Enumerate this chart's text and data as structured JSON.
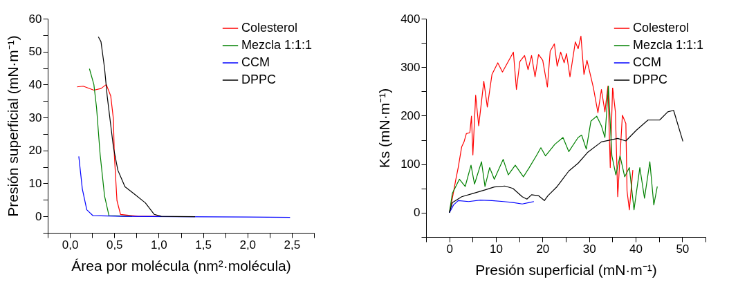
{
  "chart_data": [
    {
      "type": "line",
      "xlabel": "Área por molécula (nm²·molécula)",
      "ylabel": "Presión superficial (mN·m⁻¹)",
      "xlim": [
        -0.25,
        2.75
      ],
      "ylim": [
        -5,
        60
      ],
      "xticks": [
        {
          "value": -0.25,
          "label": null
        },
        {
          "value": 0,
          "label": "0,0"
        },
        {
          "value": 0.25,
          "label": null
        },
        {
          "value": 0.5,
          "label": "0,5"
        },
        {
          "value": 0.75,
          "label": null
        },
        {
          "value": 1,
          "label": "1,0"
        },
        {
          "value": 1.25,
          "label": null
        },
        {
          "value": 1.5,
          "label": "1,5"
        },
        {
          "value": 1.75,
          "label": null
        },
        {
          "value": 2,
          "label": "2,0"
        },
        {
          "value": 2.25,
          "label": null
        },
        {
          "value": 2.5,
          "label": "2,5"
        },
        {
          "value": 2.75,
          "label": null
        }
      ],
      "yticks": [
        {
          "value": -5,
          "label": null
        },
        0,
        {
          "value": 5,
          "label": null
        },
        10,
        {
          "value": 15,
          "label": null
        },
        20,
        {
          "value": 25,
          "label": null
        },
        30,
        {
          "value": 35,
          "label": null
        },
        40,
        {
          "value": 45,
          "label": null
        },
        50,
        {
          "value": 55,
          "label": null
        },
        60
      ],
      "grid": false,
      "legend": "top right",
      "marker": "none",
      "line_style": "solid",
      "series": [
        {
          "name": "Colesterol",
          "color": "#ff0000",
          "x": [
            0.08,
            0.15,
            0.27,
            0.35,
            0.41,
            0.46,
            0.49,
            0.5,
            0.53,
            0.57,
            0.77,
            1.0
          ],
          "values": [
            39.3,
            39.5,
            38.3,
            38.8,
            40,
            36.5,
            29.5,
            18.9,
            4.8,
            0.6,
            0,
            0
          ]
        },
        {
          "name": "Mezcla 1:1:1",
          "color": "#008000",
          "x": [
            0.22,
            0.27,
            0.3,
            0.34,
            0.39,
            0.44,
            0.7
          ],
          "values": [
            44.8,
            40,
            33,
            18.9,
            6.2,
            0.2,
            0
          ]
        },
        {
          "name": "CCM",
          "color": "#0000ff",
          "x": [
            0.1,
            0.14,
            0.19,
            0.26,
            0.6,
            2.0,
            2.48
          ],
          "values": [
            18.2,
            8.3,
            2,
            0.2,
            0,
            -0.2,
            -0.3
          ]
        },
        {
          "name": "DPPC",
          "color": "#000000",
          "x": [
            0.32,
            0.35,
            0.39,
            0.42,
            0.49,
            0.54,
            0.62,
            0.72,
            0.85,
            0.95,
            1.03,
            1.41
          ],
          "values": [
            54.5,
            53,
            45,
            36.5,
            21,
            14,
            9,
            6.9,
            4.1,
            0.6,
            0,
            -0.1
          ]
        }
      ]
    },
    {
      "type": "line",
      "xlabel": "Presión superficial (mN·m⁻¹)",
      "ylabel": "Ks (mN·m⁻¹)",
      "xlim": [
        -5,
        55
      ],
      "ylim": [
        -50,
        400
      ],
      "xticks": [
        {
          "value": -5,
          "label": null
        },
        0,
        {
          "value": 5,
          "label": null
        },
        10,
        {
          "value": 15,
          "label": null
        },
        20,
        {
          "value": 25,
          "label": null
        },
        30,
        {
          "value": 35,
          "label": null
        },
        40,
        {
          "value": 45,
          "label": null
        },
        50,
        {
          "value": 55,
          "label": null
        }
      ],
      "yticks": [
        {
          "value": -50,
          "label": null
        },
        0,
        {
          "value": 50,
          "label": null
        },
        100,
        {
          "value": 150,
          "label": null
        },
        200,
        {
          "value": 250,
          "label": null
        },
        300,
        {
          "value": 350,
          "label": null
        },
        400
      ],
      "grid": false,
      "legend": "top right",
      "marker": "none",
      "line_style": "solid",
      "series": [
        {
          "name": "Colesterol",
          "color": "#ff0000",
          "x": [
            0,
            0.65,
            1.4,
            1.9,
            2.65,
            3.15,
            3.65,
            4.4,
            4.75,
            5.05,
            5.65,
            6.3,
            7.4,
            8.15,
            9.15,
            10.4,
            11.4,
            13.75,
            14.4,
            15.15,
            16.15,
            16.9,
            17.65,
            18.4,
            19.15,
            20.05,
            21.05,
            21.65,
            22.55,
            23.15,
            23.9,
            24.65,
            25.15,
            25.9,
            27.05,
            27.65,
            28.25,
            28.9,
            29.55,
            30.9,
            31.9,
            32.65,
            33.4,
            34.05,
            34.55,
            35.05,
            35.65,
            36.15,
            37.15,
            37.9,
            38.15,
            38.65,
            39.4
          ],
          "values": [
            0,
            30,
            69,
            93,
            136,
            146,
            163,
            165,
            199,
            119,
            242,
            179,
            271,
            218,
            285,
            309,
            290,
            331,
            254,
            312,
            324,
            295,
            324,
            280,
            326,
            314,
            259,
            333,
            348,
            302,
            331,
            309,
            328,
            280,
            352,
            338,
            364,
            285,
            314,
            259,
            206,
            254,
            208,
            261,
            93,
            259,
            208,
            33,
            201,
            184,
            45,
            6,
            88
          ]
        },
        {
          "name": "Mezcla 1:1:1",
          "color": "#008000",
          "x": [
            0,
            0.65,
            2.15,
            3.4,
            4.65,
            5.4,
            6.9,
            7.65,
            8.65,
            9.65,
            11.55,
            12.65,
            14.15,
            15.9,
            17.15,
            18.65,
            19.65,
            20.65,
            22.65,
            24.4,
            25.65,
            27.65,
            28.4,
            29.4,
            30.4,
            31.65,
            32.65,
            33.4,
            34.15,
            34.9,
            35.75,
            36.65,
            37.65,
            38.65,
            39.65,
            40.9,
            41.9,
            43.05,
            43.9,
            44.65
          ],
          "values": [
            0,
            40,
            69,
            54,
            98,
            59,
            105,
            54,
            93,
            69,
            110,
            78,
            98,
            74,
            93,
            117,
            134,
            117,
            141,
            155,
            126,
            155,
            160,
            131,
            189,
            199,
            179,
            155,
            261,
            117,
            78,
            117,
            74,
            93,
            6,
            93,
            30,
            105,
            16,
            54
          ]
        },
        {
          "name": "CCM",
          "color": "#0000ff",
          "x": [
            0,
            0.9,
            1.9,
            4.15,
            6.65,
            9.15,
            11.65,
            13.65,
            15.65,
            17.15,
            18.15
          ],
          "values": [
            0,
            16,
            25,
            23,
            26,
            25,
            23,
            21,
            18,
            21,
            23
          ]
        },
        {
          "name": "DPPC",
          "color": "#000000",
          "x": [
            0,
            0.65,
            2.65,
            5.15,
            7.65,
            9.65,
            11.9,
            13.65,
            15.65,
            16.65,
            17.65,
            19.15,
            20.4,
            21.15,
            23.15,
            25.65,
            27.65,
            29.65,
            32.65,
            36.15,
            37.9,
            40.15,
            42.65,
            45.15,
            46.9,
            48.15,
            50.15
          ],
          "values": [
            0,
            21,
            33,
            40,
            47,
            53,
            55,
            50,
            33,
            28,
            37,
            35,
            25,
            35,
            54,
            86,
            102,
            124,
            146,
            153,
            148,
            170,
            191,
            191,
            208,
            211,
            147
          ]
        }
      ]
    }
  ]
}
